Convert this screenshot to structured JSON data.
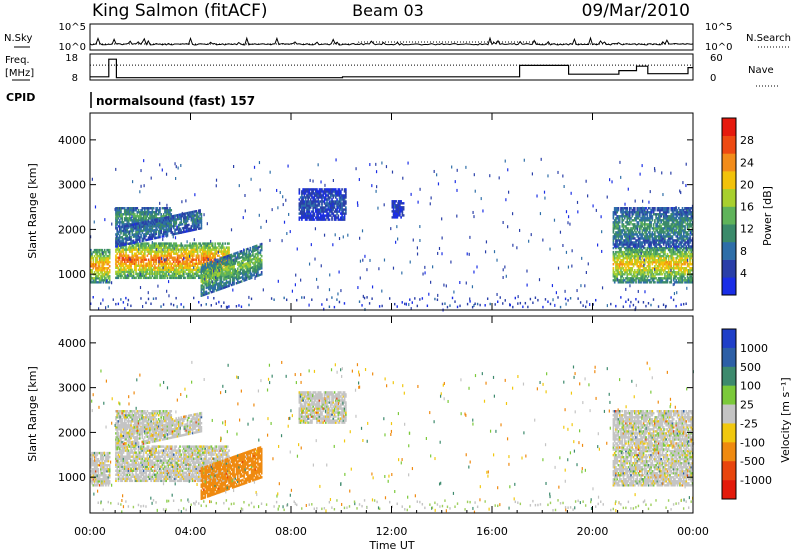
{
  "header": {
    "station": "King Salmon (fitACF)",
    "beam": "Beam 03",
    "date": "09/Mar/2010"
  },
  "left_labels": {
    "nsky": "N.Sky",
    "freq": "Freq.",
    "freq_unit": "[MHz]",
    "cpid": "CPID"
  },
  "right_labels": {
    "nsearch": "N.Search",
    "nave": "Nave"
  },
  "cpid_text": "normalsound (fast) 157",
  "chart_data": [
    {
      "type": "line",
      "name": "noise-panel",
      "left_axis": {
        "labels": [
          "10^5",
          "10^0"
        ]
      },
      "right_axis": {
        "labels": [
          "10^5",
          "10^0"
        ]
      },
      "series": [
        {
          "name": "N.Sky",
          "style": "solid"
        },
        {
          "name": "N.Search",
          "style": "dotted"
        }
      ]
    },
    {
      "type": "line",
      "name": "freq-nave-panel",
      "left_axis": {
        "label": "Freq. [MHz]",
        "ticks": [
          8,
          18
        ]
      },
      "right_axis": {
        "label": "Nave",
        "ticks": [
          0,
          60
        ]
      },
      "series": [
        {
          "name": "Freq.",
          "style": "solid",
          "points": [
            [
              0,
              9
            ],
            [
              0.75,
              9
            ],
            [
              0.75,
              17
            ],
            [
              1.05,
              17
            ],
            [
              1.05,
              8.6
            ],
            [
              10.05,
              8.6
            ],
            [
              10.05,
              9
            ],
            [
              17.1,
              9
            ],
            [
              17.1,
              14.2
            ],
            [
              19.05,
              14.2
            ],
            [
              19.05,
              10.2
            ],
            [
              21.05,
              10.2
            ],
            [
              21.05,
              11.8
            ],
            [
              21.75,
              11.8
            ],
            [
              21.75,
              13.8
            ],
            [
              22.2,
              13.8
            ],
            [
              22.2,
              10.4
            ],
            [
              23.8,
              10.4
            ],
            [
              23.8,
              13.2
            ],
            [
              24,
              13.2
            ]
          ]
        },
        {
          "name": "Nave",
          "style": "dotted",
          "approx_value": 38
        }
      ]
    },
    {
      "type": "heatmap",
      "name": "power-panel",
      "x": {
        "label": "Time UT",
        "range": [
          0,
          24
        ],
        "ticks": [
          "00:00",
          "04:00",
          "08:00",
          "12:00",
          "16:00",
          "20:00",
          "00:00"
        ]
      },
      "y": {
        "label": "Slant Range [km]",
        "range": [
          200,
          4600
        ],
        "ticks": [
          1000,
          2000,
          3000,
          4000
        ]
      },
      "colorbar": {
        "label": "Power [dB]",
        "ticks": [
          4,
          8,
          12,
          16,
          20,
          24,
          28
        ],
        "range": [
          0,
          32
        ]
      },
      "echo_regions": [
        {
          "t0": 0.0,
          "t1": 0.8,
          "r0": 800,
          "r1": 1550,
          "peak": 24
        },
        {
          "t0": 1.0,
          "t1": 5.5,
          "r0": 900,
          "r1": 1700,
          "peak": 26
        },
        {
          "t0": 1.0,
          "t1": 3.2,
          "r0": 2050,
          "r1": 2500,
          "peak": 13
        },
        {
          "t0": 1.0,
          "t1": 4.4,
          "r0": 1600,
          "r1": 2050,
          "peak": 10
        },
        {
          "t0": 4.4,
          "t1": 6.8,
          "r0": 500,
          "r1": 1200,
          "peak": 16
        },
        {
          "t0": 8.3,
          "t1": 10.2,
          "r0": 2200,
          "r1": 2900,
          "peak": 6
        },
        {
          "t0": 12.0,
          "t1": 12.5,
          "r0": 2250,
          "r1": 2650,
          "peak": 5
        },
        {
          "t0": 20.8,
          "t1": 24.0,
          "r0": 800,
          "r1": 1600,
          "peak": 22
        },
        {
          "t0": 20.8,
          "t1": 24.0,
          "r0": 1600,
          "r1": 2500,
          "peak": 12
        }
      ]
    },
    {
      "type": "heatmap",
      "name": "velocity-panel",
      "x": {
        "label": "Time UT",
        "range": [
          0,
          24
        ],
        "ticks": [
          "00:00",
          "04:00",
          "08:00",
          "12:00",
          "16:00",
          "20:00",
          "00:00"
        ]
      },
      "y": {
        "label": "Slant Range [km]",
        "range": [
          200,
          4600
        ],
        "ticks": [
          1000,
          2000,
          3000,
          4000
        ]
      },
      "colorbar": {
        "label": "Velocity [m s⁻¹]",
        "ticks": [
          1000,
          500,
          100,
          25,
          -25,
          -100,
          -500,
          -1000
        ],
        "range": [
          -1250,
          1250
        ]
      },
      "echo_regions": [
        {
          "t0": 0.0,
          "t1": 0.8,
          "r0": 800,
          "r1": 1550,
          "value": 0
        },
        {
          "t0": 1.0,
          "t1": 5.5,
          "r0": 900,
          "r1": 1700,
          "value": 0
        },
        {
          "t0": 1.0,
          "t1": 3.2,
          "r0": 2050,
          "r1": 2500,
          "value": 0
        },
        {
          "t0": 1.0,
          "t1": 4.4,
          "r0": 1600,
          "r1": 2050,
          "value": 0
        },
        {
          "t0": 4.4,
          "t1": 6.8,
          "r0": 500,
          "r1": 1200,
          "value": -150
        },
        {
          "t0": 8.3,
          "t1": 10.2,
          "r0": 2200,
          "r1": 2900,
          "value": 0
        },
        {
          "t0": 20.8,
          "t1": 24.0,
          "r0": 800,
          "r1": 1600,
          "value": 0
        },
        {
          "t0": 20.8,
          "t1": 24.0,
          "r0": 1600,
          "r1": 2500,
          "value": 0
        }
      ]
    }
  ],
  "colors": {
    "power_scale": [
      "#1a2ee6",
      "#2a3fa8",
      "#2e6ea8",
      "#3a8a6a",
      "#5fb35a",
      "#a8d02e",
      "#f2c20a",
      "#f28c1a",
      "#ee4a12",
      "#e61a0e"
    ],
    "velocity_scale": [
      "#1f3fc8",
      "#2d5fa6",
      "#3d8a6d",
      "#7bc93a",
      "#c4c4c4",
      "#f1c80e",
      "#ef8a10",
      "#e8450d",
      "#e31a0b"
    ]
  }
}
